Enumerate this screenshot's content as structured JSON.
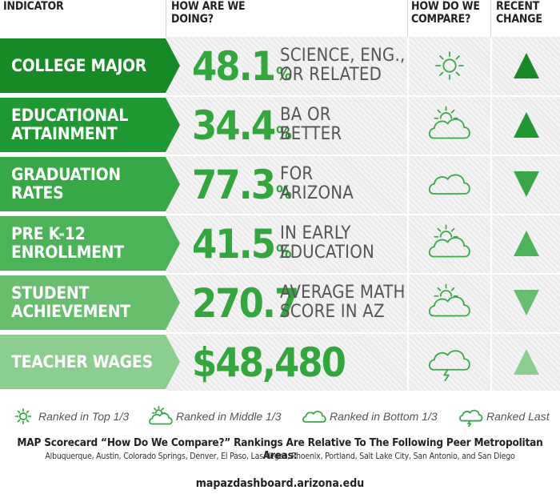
{
  "header": {
    "indicator": "INDICATOR",
    "how_line1": "HOW ARE WE",
    "how_line2": "DOING?",
    "cmp_line1": "HOW DO WE",
    "cmp_line2": "COMPARE?",
    "chg_line1": "RECENT",
    "chg_line2": "CHANGE"
  },
  "colors": {
    "rows": [
      "#168a25",
      "#1f9a32",
      "#36a845",
      "#4bb457",
      "#67bf6e",
      "#8bcf8f"
    ],
    "value_text": "#32a83c",
    "icon": "#3aa94a"
  },
  "rows": [
    {
      "indicator": "COLLEGE MAJOR",
      "value": "48.1",
      "unit": "%",
      "description": "SCIENCE, ENG.,\nOR RELATED",
      "compare_icon": "sun-icon",
      "change": "up-arrow-icon"
    },
    {
      "indicator": "EDUCATIONAL\nATTAINMENT",
      "value": "34.4",
      "unit": "%",
      "description": "BA OR\nBETTER",
      "compare_icon": "partly-cloudy-icon",
      "change": "up-arrow-icon"
    },
    {
      "indicator": "GRADUATION\nRATES",
      "value": "77.3",
      "unit": "%",
      "description": "FOR\nARIZONA",
      "compare_icon": "cloud-icon",
      "change": "down-arrow-icon"
    },
    {
      "indicator": "PRE K-12\nENROLLMENT",
      "value": "41.5",
      "unit": "%",
      "description": "IN EARLY\nEDUCATION",
      "compare_icon": "partly-cloudy-icon",
      "change": "up-arrow-icon"
    },
    {
      "indicator": "STUDENT\nACHIEVEMENT",
      "value": "270.7",
      "unit": "",
      "description": "AVERAGE MATH\nSCORE IN AZ",
      "compare_icon": "partly-cloudy-icon",
      "change": "down-arrow-icon"
    },
    {
      "indicator": "TEACHER WAGES",
      "value": "$48,480",
      "unit": "",
      "description": "",
      "compare_icon": "storm-cloud-icon",
      "change": "up-arrow-icon"
    }
  ],
  "legend": {
    "top": "Ranked in Top 1/3",
    "middle": "Ranked in Middle 1/3",
    "bottom": "Ranked in Bottom 1/3",
    "last": "Ranked Last"
  },
  "footnote": "MAP Scorecard “How Do We Compare?” Rankings Are Relative To The Following Peer Metropolitan Areas:",
  "cities": "Albuquerque, Austin, Colorado Springs, Denver, El Paso, Las Vegas, Phoenix, Portland, Salt Lake City, San Antonio, and San Diego",
  "site": "mapazdashboard.arizona.edu"
}
